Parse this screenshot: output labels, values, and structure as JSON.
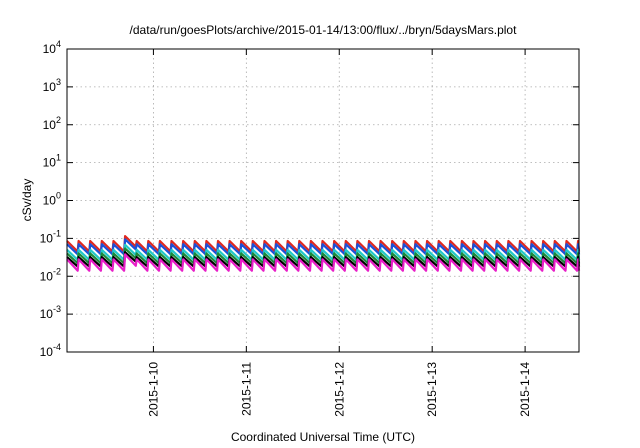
{
  "chart_data": {
    "type": "line",
    "title": "/data/run/goesPlots/archive/2015-01-14/13:00/flux/../bryn/5daysMars.plot",
    "xlabel": "Coordinated Universal Time (UTC)",
    "ylabel": "cSv/day",
    "y_scale": "log",
    "ylim": [
      0.0001,
      10000
    ],
    "y_ticks": [
      {
        "base": "10",
        "exp": "-4",
        "value": 0.0001
      },
      {
        "base": "10",
        "exp": "-3",
        "value": 0.001
      },
      {
        "base": "10",
        "exp": "-2",
        "value": 0.01
      },
      {
        "base": "10",
        "exp": "-1",
        "value": 0.1
      },
      {
        "base": "10",
        "exp": "0",
        "value": 1
      },
      {
        "base": "10",
        "exp": "1",
        "value": 10
      },
      {
        "base": "10",
        "exp": "2",
        "value": 100
      },
      {
        "base": "10",
        "exp": "3",
        "value": 1000
      },
      {
        "base": "10",
        "exp": "4",
        "value": 10000
      }
    ],
    "x_ticks": [
      "2015-1-10",
      "2015-1-11",
      "2015-1-12",
      "2015-1-13",
      "2015-1-14"
    ],
    "xlim_days": [
      9.07,
      14.58
    ],
    "x_tick_days": [
      10,
      11,
      12,
      13,
      14
    ],
    "grid": true,
    "sawtooth_period_days": 0.125,
    "bump_days": [
      9.58,
      9.7
    ],
    "bump_factor": 1.35,
    "series": [
      {
        "color": "#e0281e",
        "peak": 0.085,
        "trough": 0.045
      },
      {
        "color": "#1c50d8",
        "peak": 0.07,
        "trough": 0.038
      },
      {
        "color": "#22c8c8",
        "peak": 0.05,
        "trough": 0.027
      },
      {
        "color": "#1a8a3a",
        "peak": 0.04,
        "trough": 0.022
      },
      {
        "color": "#000000",
        "peak": 0.032,
        "trough": 0.018
      },
      {
        "color": "#e81ec8",
        "peak": 0.028,
        "trough": 0.014
      }
    ]
  }
}
